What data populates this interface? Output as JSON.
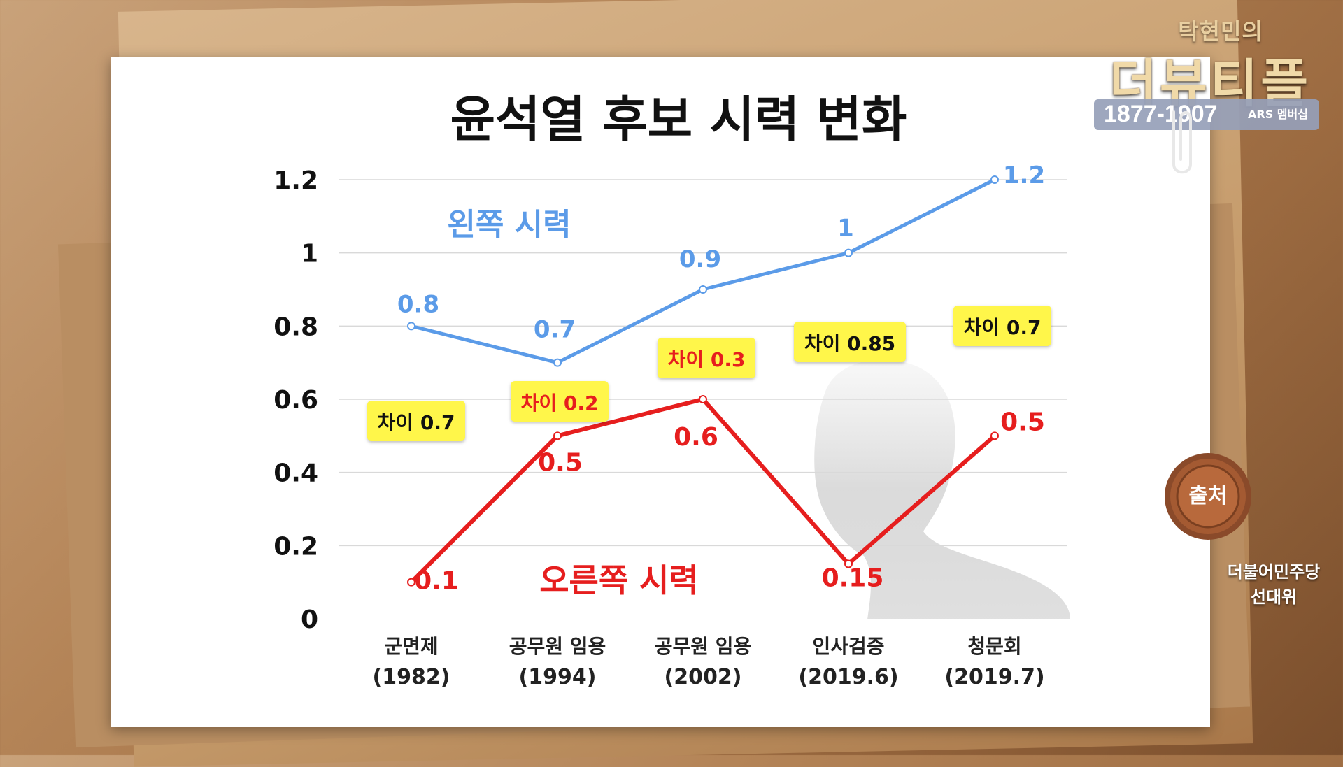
{
  "branding": {
    "host_name": "탁현민의",
    "show_name": "더뷰티플",
    "phone": "1877-1907",
    "ars_label": "ARS 멤버십"
  },
  "source": {
    "seal_label": "출처",
    "text_line1": "더불어민주당",
    "text_line2": "선대위"
  },
  "colors": {
    "left_series": "#5b9be8",
    "right_series": "#e61e1e",
    "callout_bg": "#fff64a",
    "grid": "#d9d9d9"
  },
  "chart_data": {
    "type": "line",
    "title": "윤석열 후보 시력 변화",
    "categories": [
      [
        "군면제",
        "(1982)"
      ],
      [
        "공무원 임용",
        "(1994)"
      ],
      [
        "공무원 임용",
        "(2002)"
      ],
      [
        "인사검증",
        "(2019.6)"
      ],
      [
        "청문회",
        "(2019.7)"
      ]
    ],
    "ylim": [
      0,
      1.2
    ],
    "yticks": [
      "0",
      "0.2",
      "0.4",
      "0.6",
      "0.8",
      "1",
      "1.2"
    ],
    "grid": true,
    "series": [
      {
        "name": "왼쪽 시력",
        "color": "#5b9be8",
        "values": [
          0.8,
          0.7,
          0.9,
          1,
          1.2
        ],
        "labels": [
          "0.8",
          "0.7",
          "0.9",
          "1",
          "1.2"
        ]
      },
      {
        "name": "오른쪽 시력",
        "color": "#e61e1e",
        "values": [
          0.1,
          0.5,
          0.6,
          0.15,
          0.5
        ],
        "labels": [
          "0.1",
          "0.5",
          "0.6",
          "0.15",
          "0.5"
        ]
      }
    ],
    "annotations": [
      {
        "category": 0,
        "text": "차이 0.7",
        "emphasis": false
      },
      {
        "category": 1,
        "text": "차이 0.2",
        "emphasis": true
      },
      {
        "category": 2,
        "text": "차이 0.3",
        "emphasis": true
      },
      {
        "category": 3,
        "text": "차이 0.85",
        "emphasis": false
      },
      {
        "category": 4,
        "text": "차이 0.7",
        "emphasis": false
      }
    ]
  }
}
